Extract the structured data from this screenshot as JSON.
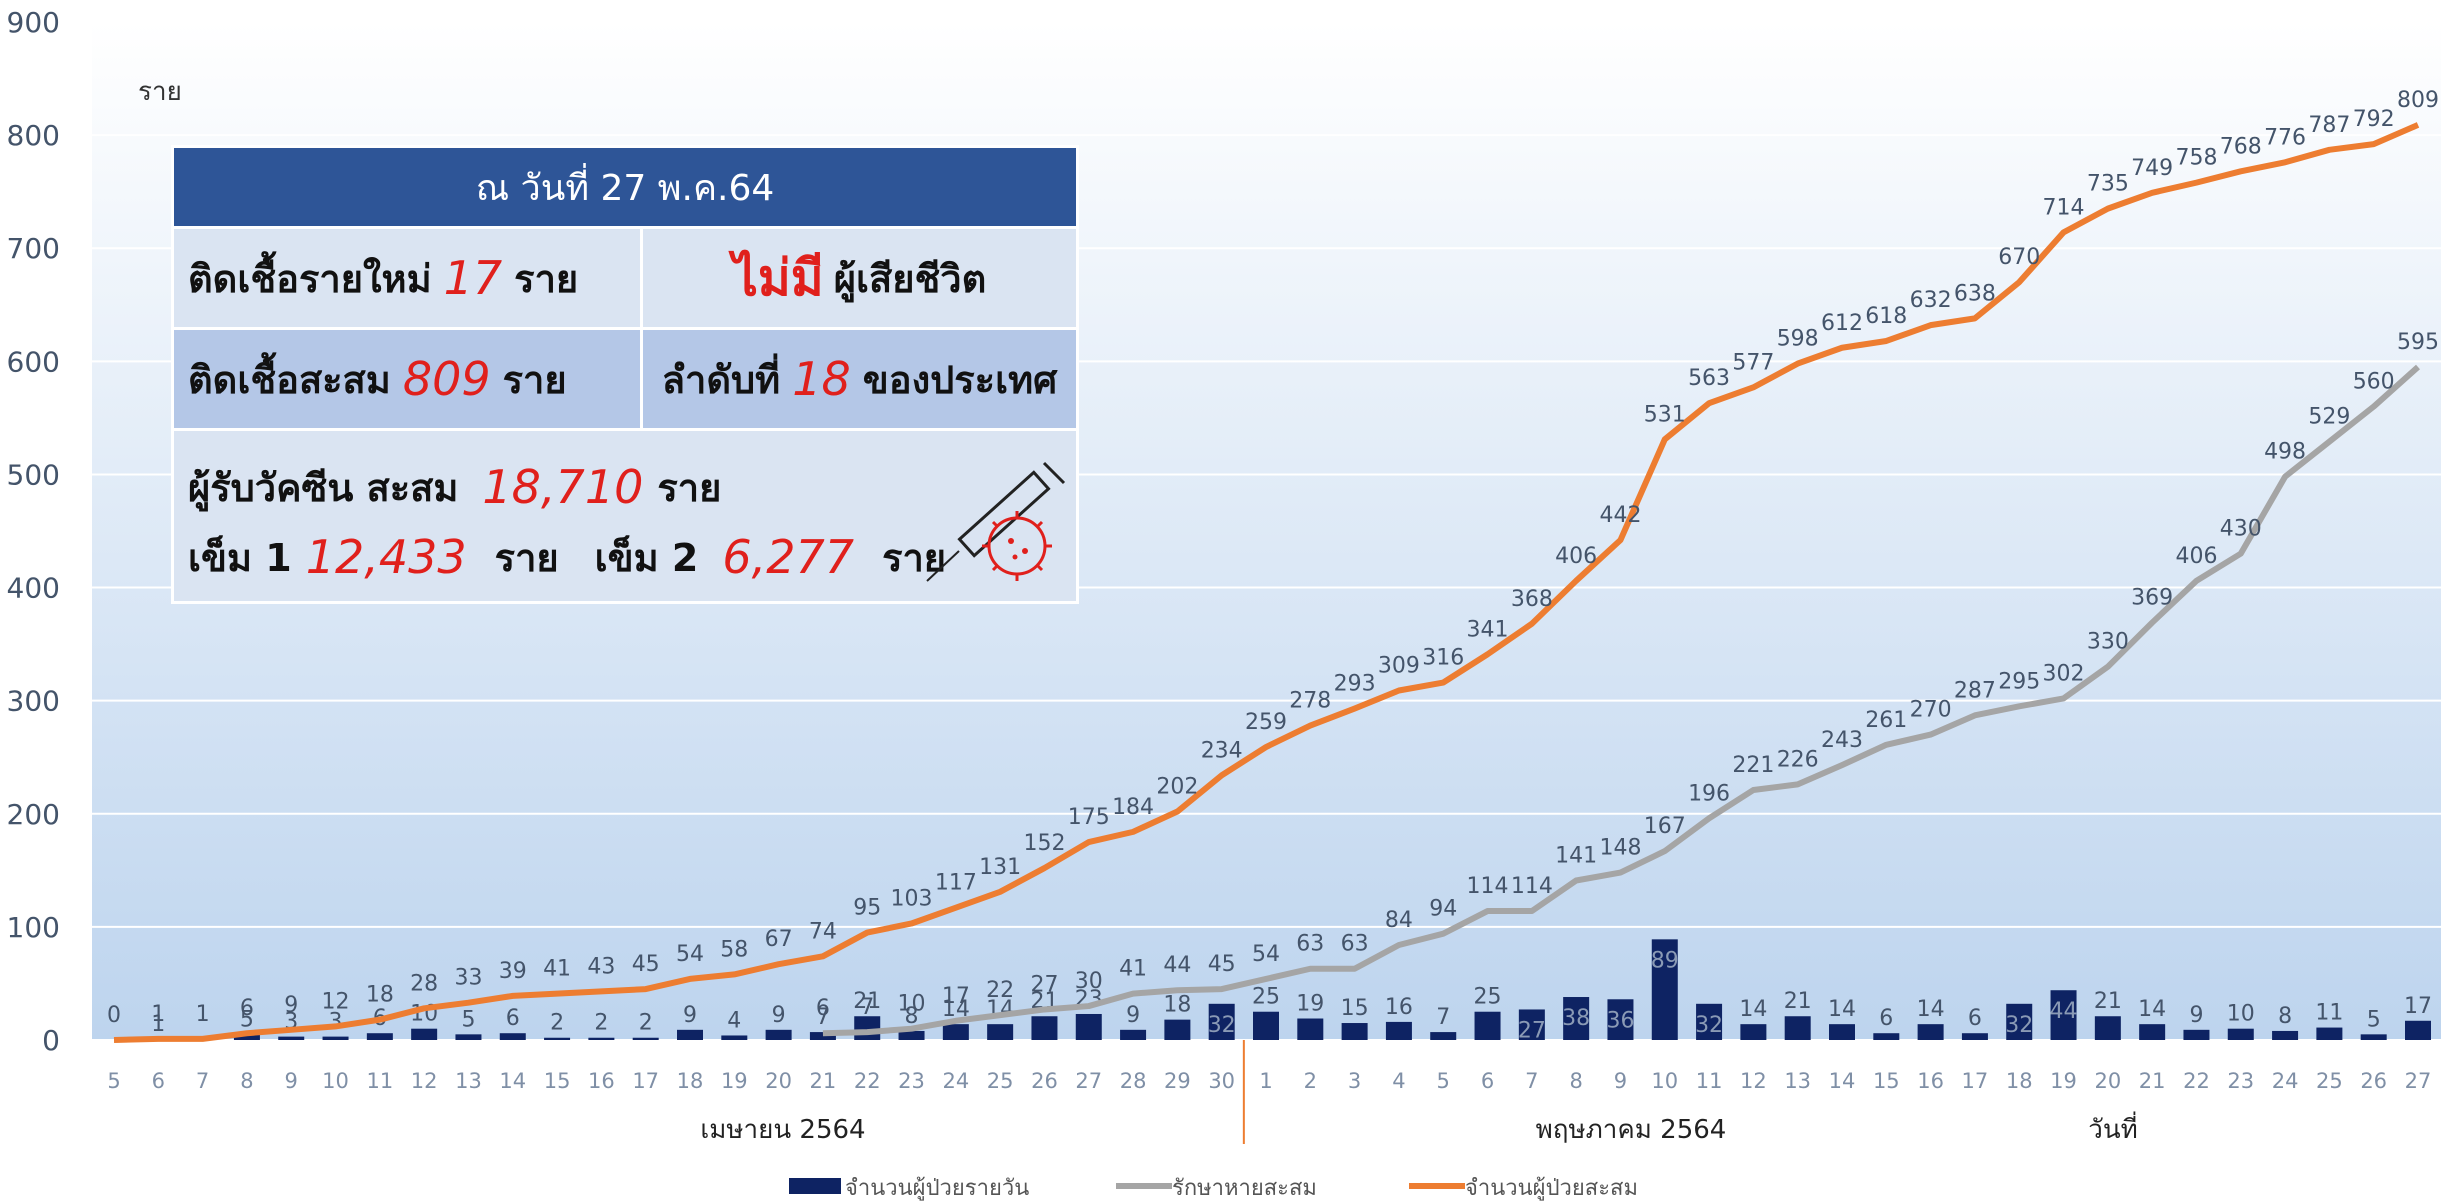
{
  "chart_data": {
    "type": "combo",
    "unit_label": "ราย",
    "categories": [
      "5",
      "6",
      "7",
      "8",
      "9",
      "10",
      "11",
      "12",
      "13",
      "14",
      "15",
      "16",
      "17",
      "18",
      "19",
      "20",
      "21",
      "22",
      "23",
      "24",
      "25",
      "26",
      "27",
      "28",
      "29",
      "30",
      "1",
      "2",
      "3",
      "4",
      "5",
      "6",
      "7",
      "8",
      "9",
      "10",
      "11",
      "12",
      "13",
      "14",
      "15",
      "16",
      "17",
      "18",
      "19",
      "20",
      "21",
      "22",
      "23",
      "24",
      "25",
      "26",
      "27"
    ],
    "x_groups": [
      "เมษายน 2564",
      "พฤษภาคม 2564",
      "วันที่"
    ],
    "series": [
      {
        "name": "จำนวนผู้ป่วยรายวัน",
        "type": "bar",
        "color": "#0e2363",
        "values": [
          null,
          1,
          null,
          5,
          3,
          3,
          6,
          10,
          5,
          6,
          2,
          2,
          2,
          9,
          4,
          9,
          7,
          21,
          8,
          14,
          14,
          21,
          23,
          9,
          18,
          32,
          25,
          19,
          15,
          16,
          7,
          25,
          27,
          38,
          36,
          89,
          32,
          14,
          21,
          14,
          6,
          14,
          6,
          32,
          44,
          21,
          14,
          9,
          10,
          8,
          11,
          5,
          17
        ]
      },
      {
        "name": "รักษาหายสะสม",
        "type": "line",
        "color": "#a5a5a5",
        "values": [
          null,
          null,
          null,
          null,
          null,
          null,
          null,
          null,
          null,
          null,
          null,
          null,
          null,
          null,
          null,
          null,
          6,
          7,
          10,
          17,
          22,
          27,
          30,
          41,
          44,
          45,
          54,
          63,
          63,
          84,
          94,
          114,
          114,
          141,
          148,
          167,
          196,
          221,
          226,
          243,
          261,
          270,
          287,
          295,
          302,
          330,
          369,
          406,
          430,
          498,
          529,
          560,
          595
        ]
      },
      {
        "name": "จำนวนผู้ป่วยสะสม",
        "type": "line",
        "color": "#ed7d31",
        "values": [
          0,
          1,
          1,
          6,
          9,
          12,
          18,
          28,
          33,
          39,
          41,
          43,
          45,
          54,
          58,
          67,
          74,
          95,
          103,
          117,
          131,
          152,
          175,
          184,
          202,
          234,
          259,
          278,
          293,
          309,
          316,
          341,
          368,
          406,
          442,
          531,
          563,
          577,
          598,
          612,
          618,
          632,
          638,
          670,
          714,
          735,
          749,
          758,
          768,
          776,
          787,
          792,
          809
        ]
      }
    ],
    "ylim": [
      0,
      900
    ],
    "yticks": [
      0,
      100,
      200,
      300,
      400,
      500,
      600,
      700,
      800,
      900
    ],
    "grid": true
  },
  "info_box": {
    "title": "ณ วันที่ 27 พ.ค.64",
    "new_cases": {
      "prefix": "ติดเชื้อรายใหม่",
      "value": "17",
      "suffix": "ราย"
    },
    "deaths": {
      "highlight": "ไม่มี",
      "suffix": "ผู้เสียชีวิต"
    },
    "total": {
      "prefix": "ติดเชื้อสะสม",
      "value": "809",
      "suffix": "ราย"
    },
    "rank": {
      "prefix": "ลำดับที่",
      "value": "18",
      "suffix": "ของประเทศ"
    },
    "vaccine": {
      "prefix": "ผู้รับวัคซีน สะสม",
      "value": "18,710",
      "suffix": "ราย"
    },
    "dose1": {
      "prefix": "เข็ม 1",
      "value": "12,433",
      "suffix": "ราย"
    },
    "dose2": {
      "prefix": "เข็ม 2",
      "value": "6,277",
      "suffix": "ราย"
    }
  }
}
